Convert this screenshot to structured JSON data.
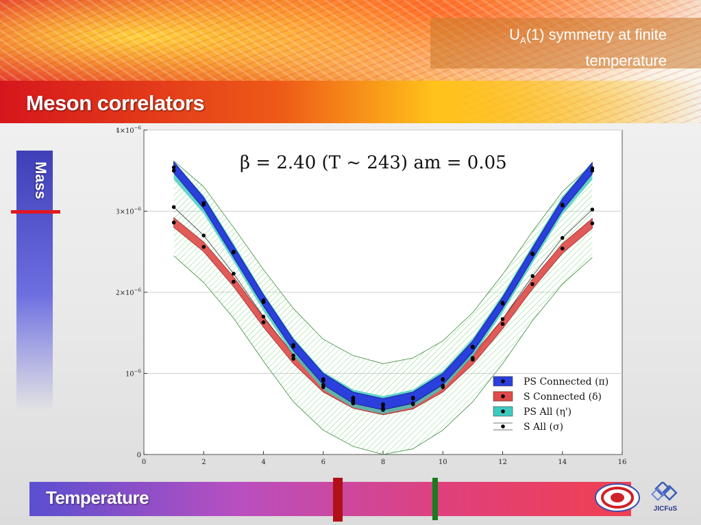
{
  "header": {
    "subtitle_line1_pre": "U",
    "subtitle_line1_sub": "A",
    "subtitle_line1_post": "(1) symmetry at finite",
    "subtitle_line2": "temperature",
    "section_title": "Meson correlators"
  },
  "side": {
    "mass_label": "Mass"
  },
  "bottom": {
    "temperature_label": "Temperature",
    "logo_text": "JICFuS"
  },
  "colors": {
    "ps_connected": "#2b3fdc",
    "s_connected": "#e04a48",
    "ps_all": "#3ec9c0",
    "s_all": "#7fd67f"
  },
  "chart_data": {
    "type": "line",
    "title": "β = 2.40 (T ~ 243) am = 0.05",
    "xlabel": "",
    "ylabel": "",
    "xlim": [
      0,
      16
    ],
    "ylim": [
      0,
      4e-06
    ],
    "x_ticks": [
      0,
      2,
      4,
      6,
      8,
      10,
      12,
      14,
      16
    ],
    "x_tick_labels": [
      "0",
      "2",
      "4",
      "6",
      "8",
      "10",
      "12",
      "14",
      "16"
    ],
    "y_ticks": [
      0,
      1e-06,
      2e-06,
      3e-06,
      4e-06
    ],
    "y_tick_labels": [
      {
        "mant": "0",
        "exp": ""
      },
      {
        "mant": "10",
        "exp": "−6"
      },
      {
        "mant": "2×10",
        "exp": "−6"
      },
      {
        "mant": "3×10",
        "exp": "−6"
      },
      {
        "mant": "4×10",
        "exp": "−6"
      }
    ],
    "grid": true,
    "legend_position": "bottom-right",
    "x": [
      1,
      2,
      3,
      4,
      5,
      6,
      7,
      8,
      9,
      10,
      11,
      12,
      13,
      14,
      15
    ],
    "series": [
      {
        "name": "PS Connected (π)",
        "values": [
          3.54e-06,
          3.1e-06,
          2.5e-06,
          1.9e-06,
          1.35e-06,
          9.3e-07,
          7e-07,
          6.2e-07,
          7e-07,
          9.3e-07,
          1.33e-06,
          1.87e-06,
          2.48e-06,
          3.08e-06,
          3.53e-06
        ],
        "band_half_width": 7e-08
      },
      {
        "name": "S Connected (δ)",
        "values": [
          2.86e-06,
          2.56e-06,
          2.13e-06,
          1.63e-06,
          1.18e-06,
          8.3e-07,
          6.3e-07,
          5.5e-07,
          6.2e-07,
          8.3e-07,
          1.17e-06,
          1.61e-06,
          2.1e-06,
          2.54e-06,
          2.85e-06
        ],
        "band_half_width": 6e-08
      },
      {
        "name": "PS All (η')",
        "values": [
          3.5e-06,
          3.08e-06,
          2.49e-06,
          1.88e-06,
          1.33e-06,
          9.1e-07,
          6.9e-07,
          6.1e-07,
          6.9e-07,
          9.2e-07,
          1.32e-06,
          1.86e-06,
          2.47e-06,
          3.07e-06,
          3.5e-06
        ],
        "band_half_width": 4e-08
      },
      {
        "name": "S All (σ)",
        "values": [
          3.05e-06,
          2.7e-06,
          2.23e-06,
          1.7e-06,
          1.22e-06,
          8.6e-07,
          6.6e-07,
          5.7e-07,
          6.3e-07,
          8.5e-07,
          1.19e-06,
          1.67e-06,
          2.2e-06,
          2.67e-06,
          3.02e-06
        ],
        "band_upper": [
          3.62e-06,
          3.3e-06,
          2.8e-06,
          2.28e-06,
          1.8e-06,
          1.42e-06,
          1.22e-06,
          1.12e-06,
          1.19e-06,
          1.4e-06,
          1.75e-06,
          2.22e-06,
          2.75e-06,
          3.24e-06,
          3.58e-06
        ],
        "band_lower": [
          2.45e-06,
          2.12e-06,
          1.68e-06,
          1.15e-06,
          6.5e-07,
          3e-07,
          1e-07,
          0.0,
          7e-08,
          3e-07,
          6.5e-07,
          1.12e-06,
          1.65e-06,
          2.1e-06,
          2.43e-06
        ]
      }
    ]
  }
}
